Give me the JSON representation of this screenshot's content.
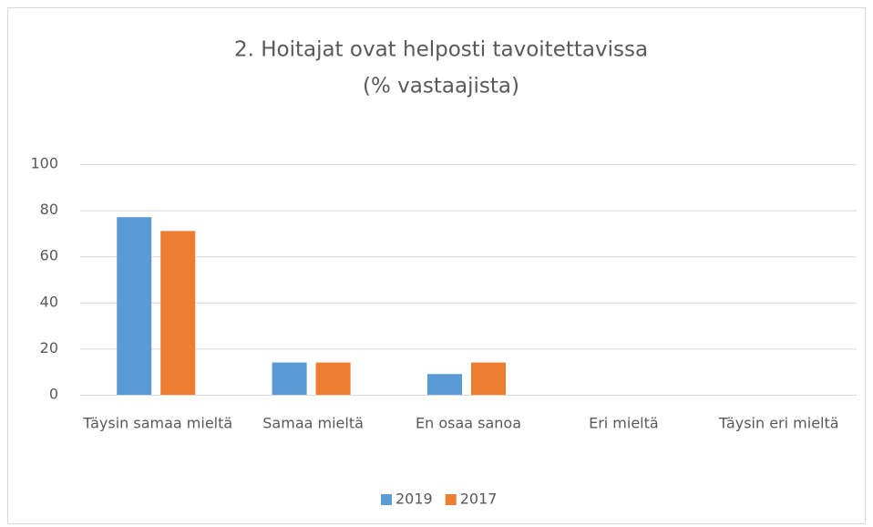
{
  "chart_data": {
    "type": "bar",
    "title": [
      "2. Hoitajat ovat helposti tavoitettavissa",
      "(% vastaajista)"
    ],
    "categories": [
      "Täysin samaa mieltä",
      "Samaa mieltä",
      "En osaa sanoa",
      "Eri mieltä",
      "Täysin eri mieltä"
    ],
    "series": [
      {
        "name": "2019",
        "color": "#5b9bd5",
        "values": [
          77,
          14,
          9,
          0,
          0
        ]
      },
      {
        "name": "2017",
        "color": "#ed7d31",
        "values": [
          71,
          14,
          14,
          0,
          0
        ]
      }
    ],
    "ylim": [
      0,
      100
    ],
    "yticks": [
      0,
      20,
      40,
      60,
      80,
      100
    ],
    "grid": true,
    "legend": "bottom"
  }
}
